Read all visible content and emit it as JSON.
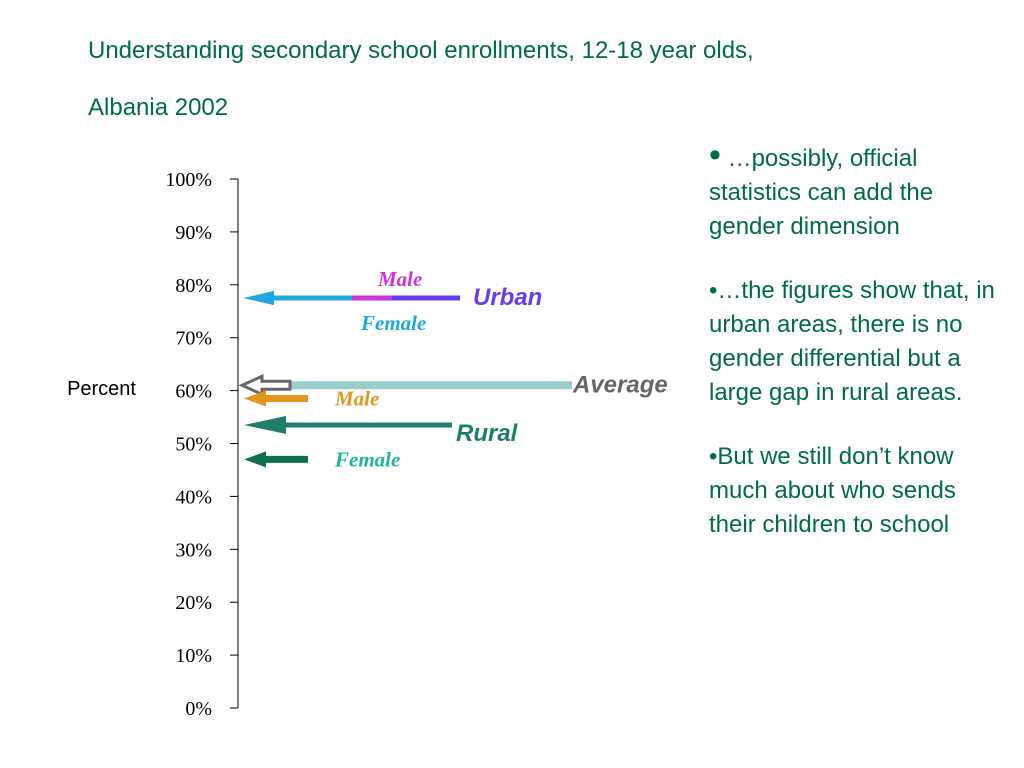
{
  "slide": {
    "title_line1": "Understanding secondary school enrollments, 12-18 year olds,",
    "title_line2": "Albania 2002"
  },
  "bullets": [
    {
      "marker": "•",
      "text": " …possibly, official statistics can add the gender dimension"
    },
    {
      "marker": "•",
      "text": "…the figures show that, in urban areas, there is no gender differential but a large gap in rural areas."
    },
    {
      "marker": "•",
      "text": "But we still don’t know much about who sends their children to school"
    }
  ],
  "chart_data": {
    "type": "arrow-marker",
    "ylabel": "Percent",
    "ylim": [
      0,
      100
    ],
    "yticks": [
      "0%",
      "10%",
      "20%",
      "30%",
      "40%",
      "50%",
      "60%",
      "70%",
      "80%",
      "90%",
      "100%"
    ],
    "series": [
      {
        "name": "Urban",
        "value": 77.5,
        "color": "#6a3cf0",
        "group": "Urban",
        "label_style": "group"
      },
      {
        "name": "Male",
        "value": 77.5,
        "color": "#cc33dd",
        "group": "Urban",
        "label_style": "sub"
      },
      {
        "name": "Female",
        "value": 77.5,
        "color": "#1eaadc",
        "group": "Urban",
        "label_style": "sub"
      },
      {
        "name": "Average",
        "value": 61,
        "color": "#99cccc",
        "group": "Average",
        "label_style": "average"
      },
      {
        "name": "Male",
        "value": 58.5,
        "color": "#e2961e",
        "group": "Rural",
        "label_style": "sub"
      },
      {
        "name": "Rural",
        "value": 53.5,
        "color": "#1e7e6a",
        "group": "Rural",
        "label_style": "group"
      },
      {
        "name": "Female",
        "value": 47,
        "color": "#0f6e50",
        "group": "Rural",
        "label_style": "sub"
      }
    ],
    "colors": {
      "text": "#006a4e",
      "axis": "#000000",
      "average_text": "#666666",
      "urban_text": "#6a3cf0",
      "rural_text": "#1e7e6a",
      "urban_male_text": "#cc33dd",
      "urban_female_text": "#1eaadc",
      "rural_male_text": "#e2961e",
      "rural_female_text": "#1eb4a0"
    }
  }
}
